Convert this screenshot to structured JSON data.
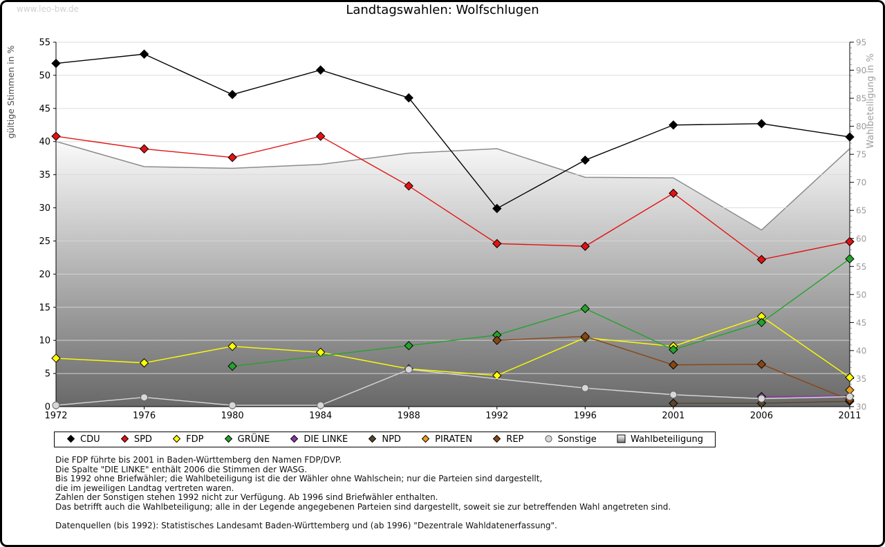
{
  "watermark": "www.leo-bw.de",
  "title": "Landtagswahlen: Wolfschlugen",
  "chart_data": {
    "type": "line",
    "title": "Landtagswahlen: Wolfschlugen",
    "x_years": [
      1972,
      1976,
      1980,
      1984,
      1988,
      1992,
      1996,
      2001,
      2006,
      2011
    ],
    "left_axis": {
      "label": "gültige Stimmen in %",
      "min": 0,
      "max": 55,
      "tick_step": 5
    },
    "right_axis": {
      "label": "Wahlbeteiligung in %",
      "min": 30,
      "max": 95,
      "tick_step": 5
    },
    "grid": true,
    "legend_position": "bottom",
    "series": [
      {
        "name": "CDU",
        "color": "#000000",
        "marker": "diamond",
        "axis": "left",
        "values": [
          51.8,
          53.2,
          47.1,
          50.8,
          46.6,
          29.9,
          37.2,
          42.5,
          42.7,
          40.7
        ]
      },
      {
        "name": "SPD",
        "color": "#e11212",
        "marker": "diamond",
        "axis": "left",
        "values": [
          40.8,
          38.9,
          37.6,
          40.8,
          33.3,
          24.6,
          24.2,
          32.2,
          22.2,
          24.9
        ]
      },
      {
        "name": "FDP",
        "color": "#ffff00",
        "marker": "diamond",
        "axis": "left",
        "values": [
          7.3,
          6.6,
          9.1,
          8.2,
          5.7,
          4.7,
          10.4,
          9.1,
          13.6,
          4.4
        ]
      },
      {
        "name": "GRÜNE",
        "color": "#24a32c",
        "marker": "diamond",
        "axis": "left",
        "values": [
          null,
          null,
          6.1,
          null,
          9.2,
          10.8,
          14.8,
          8.6,
          12.7,
          22.3
        ]
      },
      {
        "name": "DIE LINKE",
        "color": "#9233ad",
        "marker": "diamond",
        "axis": "left",
        "values": [
          null,
          null,
          null,
          null,
          null,
          null,
          null,
          null,
          1.5,
          1.6
        ]
      },
      {
        "name": "NPD",
        "color": "#5b452a",
        "marker": "diamond",
        "axis": "left",
        "values": [
          null,
          null,
          null,
          null,
          null,
          null,
          null,
          0.5,
          0.5,
          0.8
        ]
      },
      {
        "name": "PIRATEN",
        "color": "#ee9c20",
        "marker": "diamond",
        "axis": "left",
        "values": [
          null,
          null,
          null,
          null,
          null,
          null,
          null,
          null,
          null,
          2.5
        ]
      },
      {
        "name": "REP",
        "color": "#8a4513",
        "marker": "diamond",
        "axis": "left",
        "values": [
          null,
          null,
          null,
          null,
          null,
          10.0,
          10.6,
          6.3,
          6.4,
          1.0
        ]
      },
      {
        "name": "Sonstige",
        "color": "#d8d8d8",
        "marker": "circle",
        "axis": "left",
        "values": [
          0.2,
          1.4,
          0.2,
          0.2,
          5.6,
          null,
          2.8,
          1.8,
          1.2,
          1.5
        ]
      }
    ],
    "area_series": {
      "name": "Wahlbeteiligung",
      "axis": "right",
      "edge_color": "#8b8b8b",
      "fill_gradient": [
        "#fafafa",
        "#686868"
      ],
      "values": [
        77.3,
        72.8,
        72.5,
        73.2,
        75.2,
        76.0,
        70.9,
        70.8,
        61.5,
        76.0
      ]
    }
  },
  "footnotes": [
    "Die FDP führte bis 2001 in Baden-Württemberg den Namen FDP/DVP.",
    "Die Spalte \"DIE LINKE\" enthält 2006 die Stimmen der WASG.",
    "Bis 1992 ohne Briefwähler; die Wahlbeteiligung ist die der Wähler ohne Wahlschein; nur die Parteien sind dargestellt,",
    "die im jeweiligen Landtag vertreten waren.",
    "Zahlen der Sonstigen stehen 1992 nicht zur Verfügung. Ab 1996 sind Briefwähler enthalten.",
    "Das betrifft auch die Wahlbeteiligung; alle in der Legende angegebenen Parteien sind dargestellt, soweit sie zur betreffenden Wahl angetreten sind.",
    "",
    "Datenquellen (bis 1992): Statistisches Landesamt Baden-Württemberg und (ab 1996) \"Dezentrale Wahldatenerfassung\"."
  ]
}
